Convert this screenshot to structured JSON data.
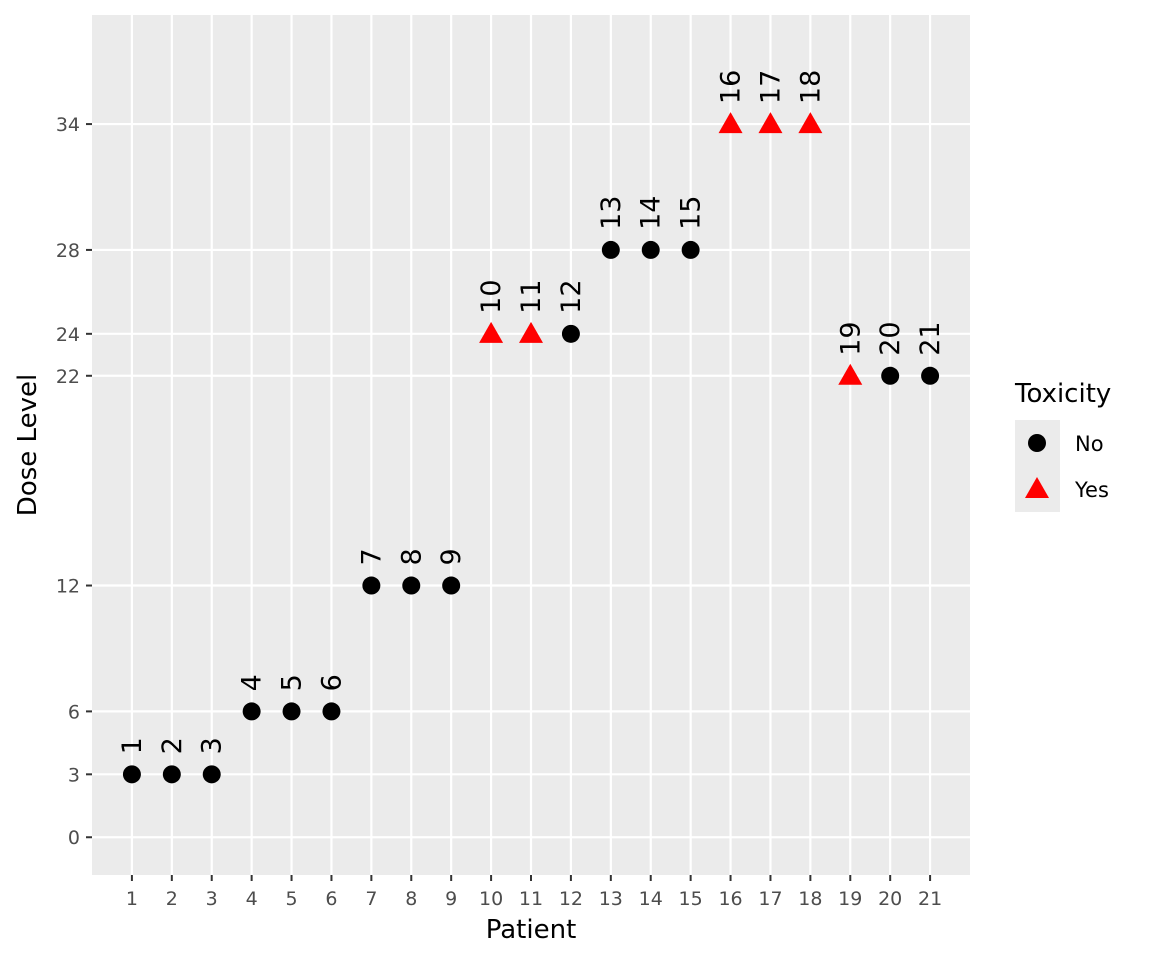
{
  "chart_data": {
    "type": "scatter",
    "xlabel": "Patient",
    "ylabel": "Dose Level",
    "x_ticks": [
      "1",
      "2",
      "3",
      "4",
      "5",
      "6",
      "7",
      "8",
      "9",
      "10",
      "11",
      "12",
      "13",
      "14",
      "15",
      "16",
      "17",
      "18",
      "19",
      "20",
      "21"
    ],
    "y_ticks": [
      0,
      3,
      6,
      12,
      22,
      24,
      28,
      34
    ],
    "xlim": [
      0,
      22
    ],
    "ylim": [
      -1.8,
      39.2
    ],
    "grid": true,
    "background": "#EBEBEB",
    "legend": {
      "title": "Toxicity",
      "position": "right",
      "entries": [
        {
          "label": "No",
          "shape": "circle",
          "color": "#000000"
        },
        {
          "label": "Yes",
          "shape": "triangle",
          "color": "#FF0000"
        }
      ]
    },
    "points": [
      {
        "x": 1,
        "y": 3,
        "label": "1",
        "toxicity": "No"
      },
      {
        "x": 2,
        "y": 3,
        "label": "2",
        "toxicity": "No"
      },
      {
        "x": 3,
        "y": 3,
        "label": "3",
        "toxicity": "No"
      },
      {
        "x": 4,
        "y": 6,
        "label": "4",
        "toxicity": "No"
      },
      {
        "x": 5,
        "y": 6,
        "label": "5",
        "toxicity": "No"
      },
      {
        "x": 6,
        "y": 6,
        "label": "6",
        "toxicity": "No"
      },
      {
        "x": 7,
        "y": 12,
        "label": "7",
        "toxicity": "No"
      },
      {
        "x": 8,
        "y": 12,
        "label": "8",
        "toxicity": "No"
      },
      {
        "x": 9,
        "y": 12,
        "label": "9",
        "toxicity": "No"
      },
      {
        "x": 10,
        "y": 24,
        "label": "10",
        "toxicity": "Yes"
      },
      {
        "x": 11,
        "y": 24,
        "label": "11",
        "toxicity": "Yes"
      },
      {
        "x": 12,
        "y": 24,
        "label": "12",
        "toxicity": "No"
      },
      {
        "x": 13,
        "y": 28,
        "label": "13",
        "toxicity": "No"
      },
      {
        "x": 14,
        "y": 28,
        "label": "14",
        "toxicity": "No"
      },
      {
        "x": 15,
        "y": 28,
        "label": "15",
        "toxicity": "No"
      },
      {
        "x": 16,
        "y": 34,
        "label": "16",
        "toxicity": "Yes"
      },
      {
        "x": 17,
        "y": 34,
        "label": "17",
        "toxicity": "Yes"
      },
      {
        "x": 18,
        "y": 34,
        "label": "18",
        "toxicity": "Yes"
      },
      {
        "x": 19,
        "y": 22,
        "label": "19",
        "toxicity": "Yes"
      },
      {
        "x": 20,
        "y": 22,
        "label": "20",
        "toxicity": "No"
      },
      {
        "x": 21,
        "y": 22,
        "label": "21",
        "toxicity": "No"
      }
    ]
  }
}
